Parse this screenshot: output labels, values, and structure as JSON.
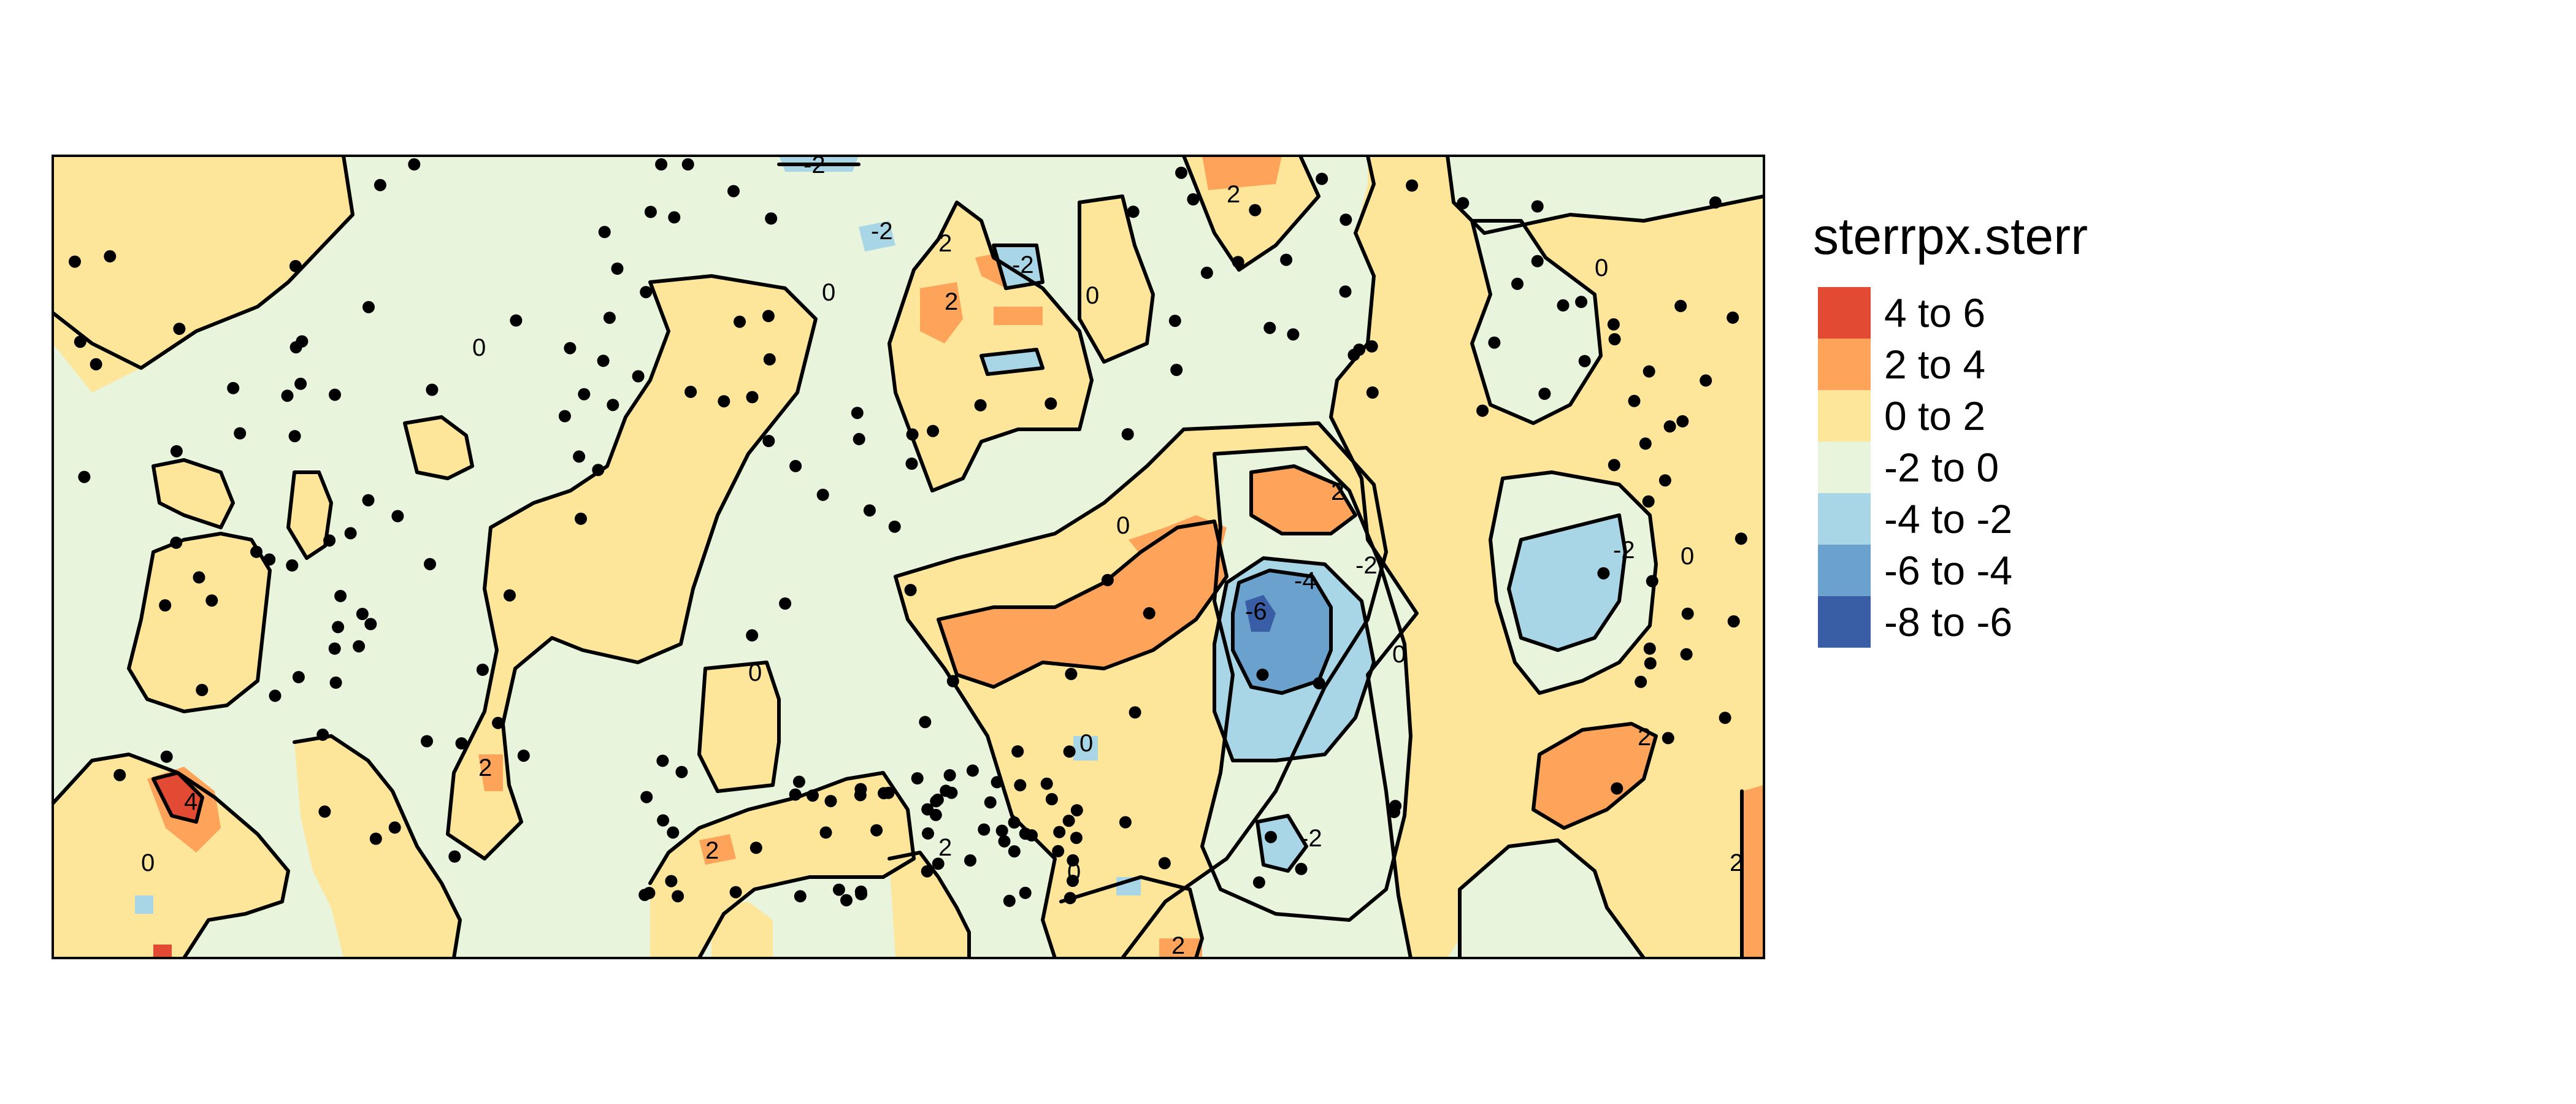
{
  "legend": {
    "title": "sterrpx.sterr",
    "classes": [
      {
        "label": "4 to 6",
        "color": "#E34A33"
      },
      {
        "label": "2 to 4",
        "color": "#FDA35A"
      },
      {
        "label": "0 to 2",
        "color": "#FDE59A"
      },
      {
        "label": "-2 to 0",
        "color": "#E8F4DC"
      },
      {
        "label": "-4 to -2",
        "color": "#A9D6E6"
      },
      {
        "label": "-6 to -4",
        "color": "#6AA2CD"
      },
      {
        "label": "-8 to -6",
        "color": "#3A5EA6"
      }
    ]
  },
  "contour_labels": [
    "-2",
    "0",
    "2",
    "-4",
    "-6",
    "4",
    "-2",
    "0",
    "2",
    "0",
    "2",
    "-2",
    "0",
    "2",
    "-2",
    "0",
    "0",
    "2",
    "0",
    "0",
    "2",
    "0",
    "2",
    "-2",
    "2",
    "2",
    "0",
    "-2",
    "0",
    "2"
  ],
  "point_color": "#000000"
}
